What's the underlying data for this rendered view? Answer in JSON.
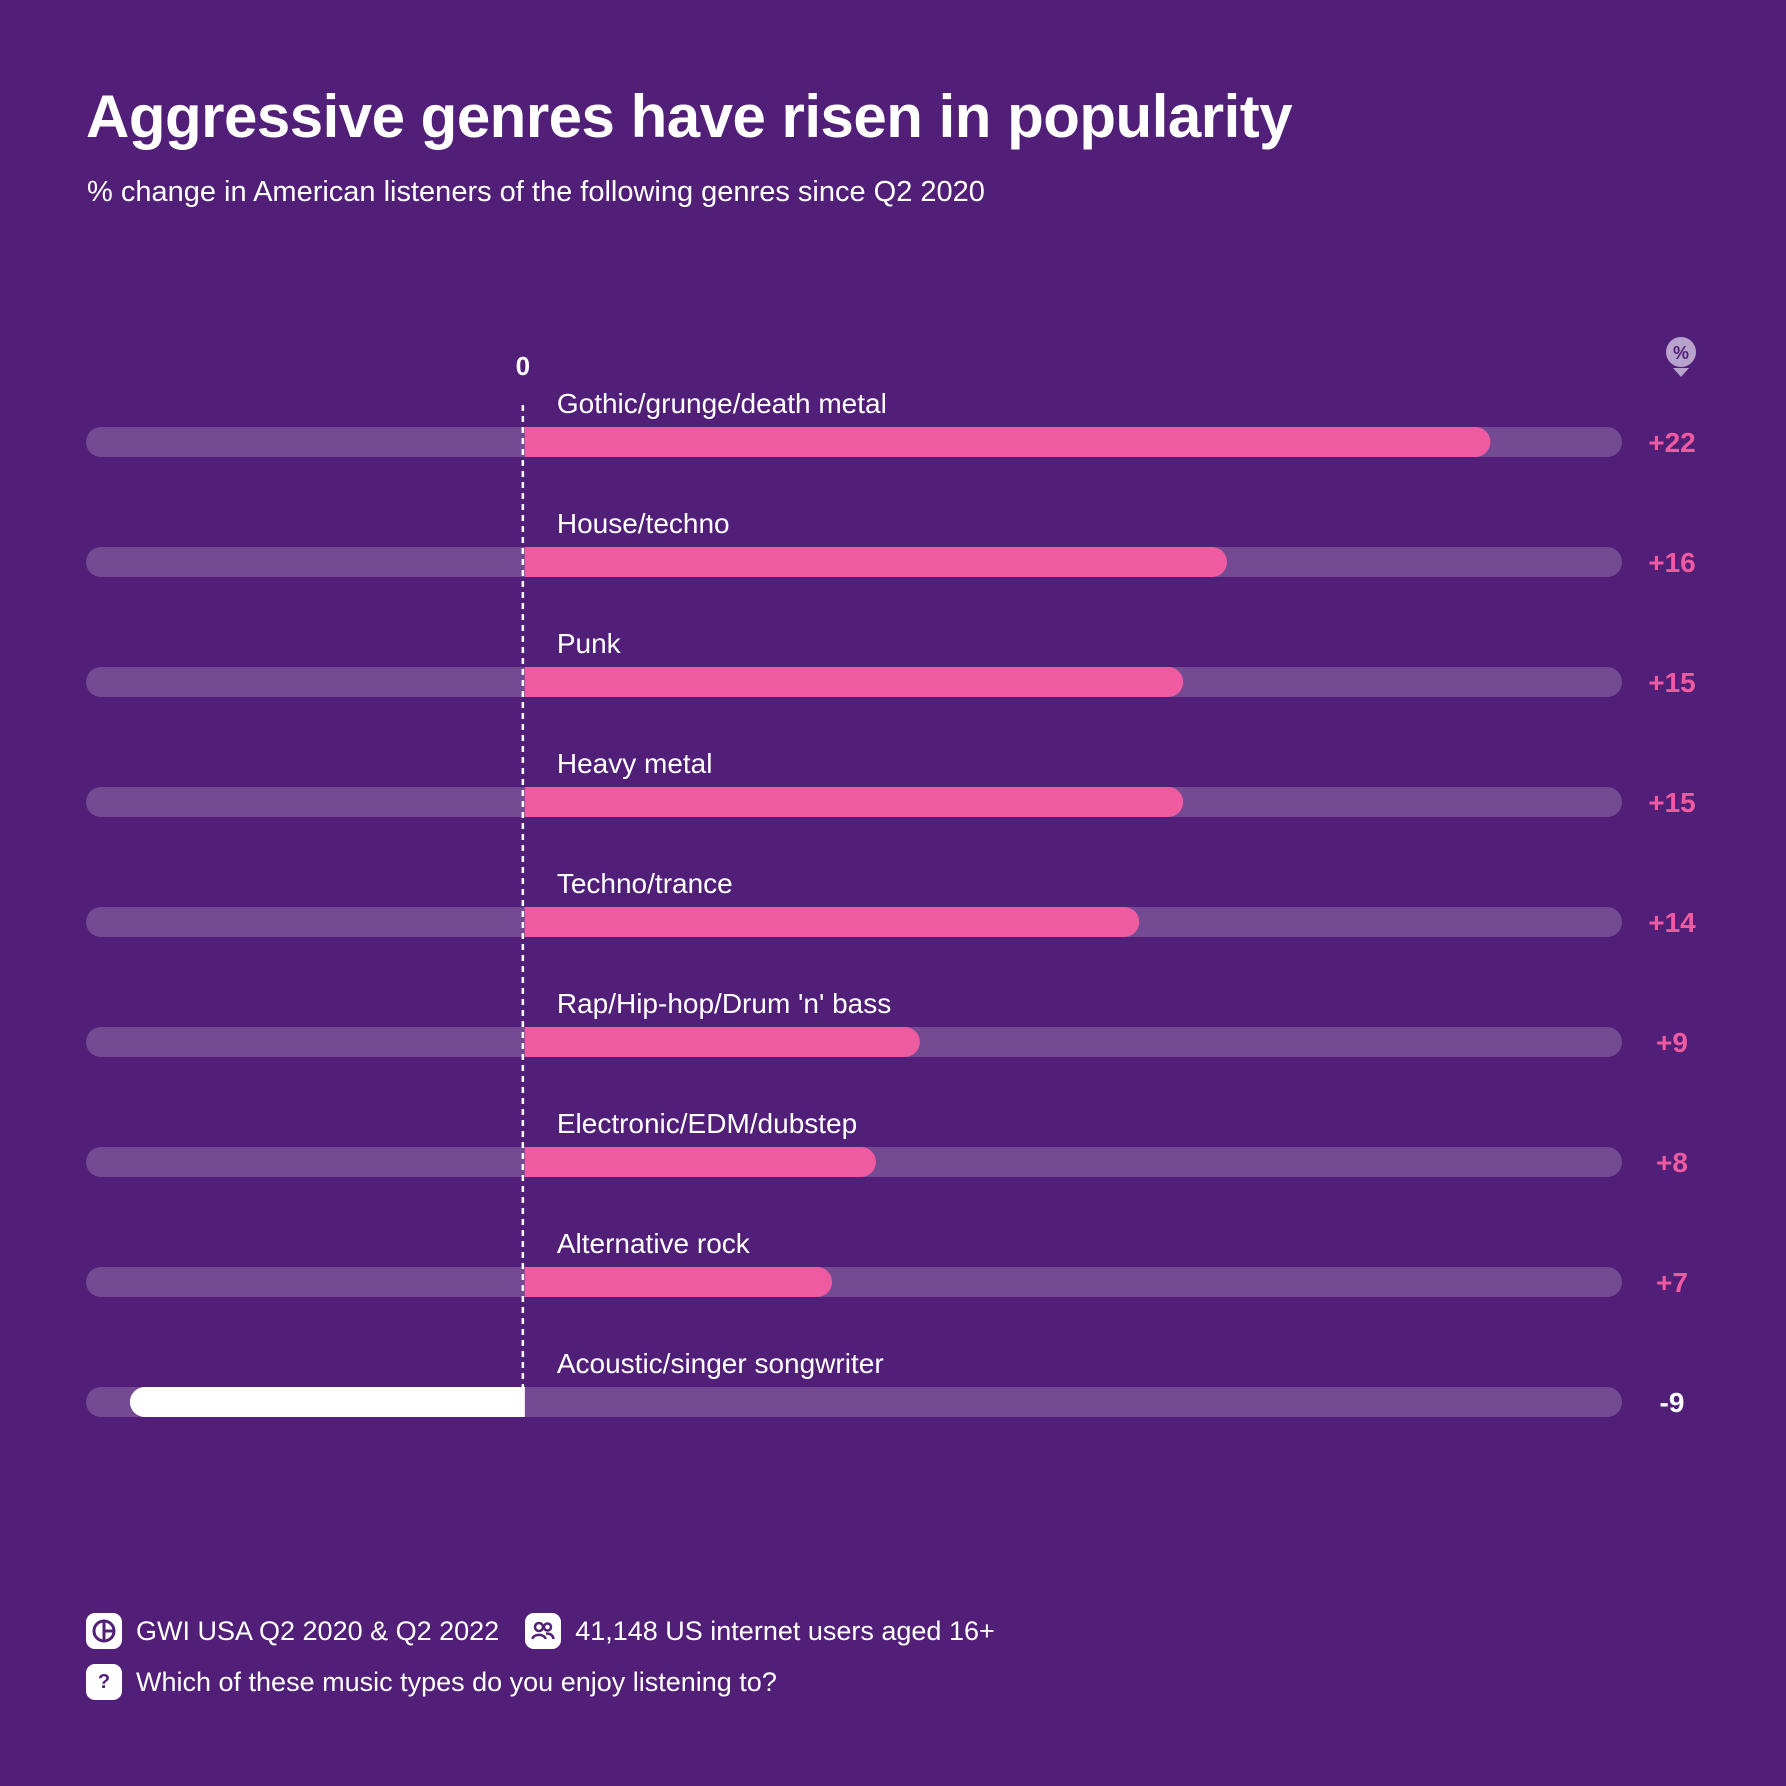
{
  "header": {
    "title": "Aggressive genres have risen in popularity",
    "subtitle": "% change in American listeners of the following genres since Q2 2020"
  },
  "colors": {
    "background": "#511f78",
    "track": "#744b92",
    "positive": "#ef5ba1",
    "negative": "#ffffff",
    "text": "#ffffff"
  },
  "unit_badge": "%",
  "chart_data": {
    "type": "bar",
    "orientation": "horizontal",
    "title": "Aggressive genres have risen in popularity",
    "subtitle": "% change in American listeners of the following genres since Q2 2020",
    "zero_label": "0",
    "xlim": [
      -10,
      25
    ],
    "categories": [
      "Gothic/grunge/death metal",
      "House/techno",
      "Punk",
      "Heavy metal",
      "Techno/trance",
      "Rap/Hip-hop/Drum 'n' bass",
      "Electronic/EDM/dubstep",
      "Alternative rock",
      "Acoustic/singer songwriter"
    ],
    "values": [
      22,
      16,
      15,
      15,
      14,
      9,
      8,
      7,
      -9
    ],
    "value_labels": [
      "+22",
      "+16",
      "+15",
      "+15",
      "+14",
      "+9",
      "+8",
      "+7",
      "-9"
    ],
    "grid": false
  },
  "footer": {
    "source": "GWI USA Q2 2020 & Q2 2022",
    "sample": "41,148 US internet users aged 16+",
    "question_icon_text": "?",
    "question": "Which of these music types do you enjoy listening to?"
  }
}
